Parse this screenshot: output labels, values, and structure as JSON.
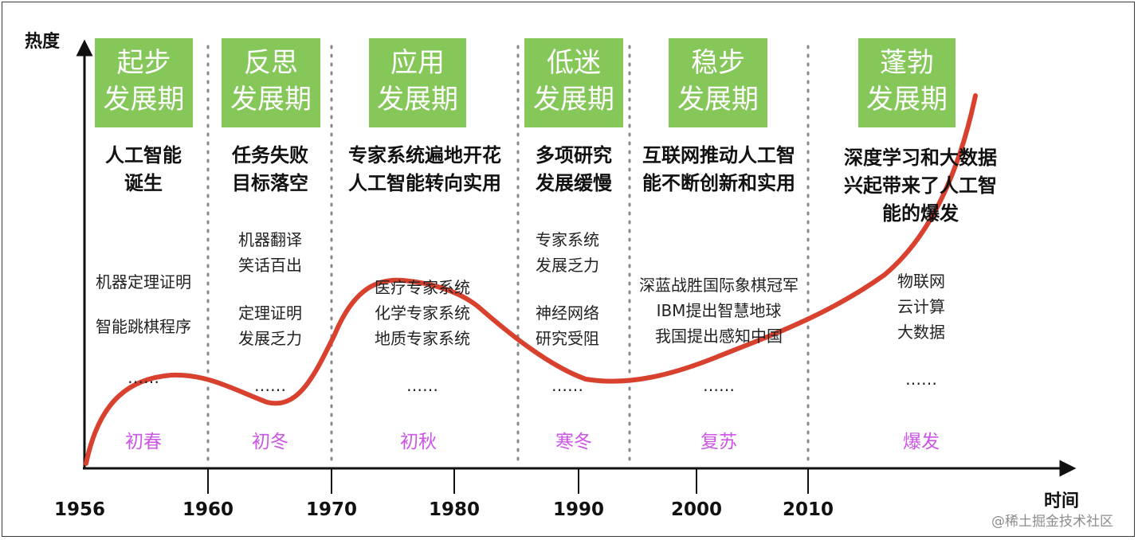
{
  "axes": {
    "y_label": "热度",
    "x_label": "时间",
    "ticks": [
      "1956",
      "1960",
      "1970",
      "1980",
      "1990",
      "2000",
      "2010"
    ]
  },
  "eras": [
    {
      "name_line1": "起步",
      "name_line2": "发展期",
      "title": [
        "人工智能",
        "诞生"
      ],
      "details": [
        "机器定理证明",
        "智能跳棋程序"
      ],
      "ellipsis": "……",
      "season": "初春"
    },
    {
      "name_line1": "反思",
      "name_line2": "发展期",
      "title": [
        "任务失败",
        "目标落空"
      ],
      "details": [
        "机器翻译",
        "笑话百出",
        "定理证明",
        "发展乏力"
      ],
      "ellipsis": "……",
      "season": "初冬"
    },
    {
      "name_line1": "应用",
      "name_line2": "发展期",
      "title": [
        "专家系统遍地开花",
        "人工智能转向实用"
      ],
      "details": [
        "医疗专家系统",
        "化学专家系统",
        "地质专家系统"
      ],
      "ellipsis": "……",
      "season": "初秋"
    },
    {
      "name_line1": "低迷",
      "name_line2": "发展期",
      "title": [
        "多项研究",
        "发展缓慢"
      ],
      "details": [
        "专家系统",
        "发展乏力",
        "神经网络",
        "研究受阻"
      ],
      "ellipsis": "……",
      "season": "寒冬"
    },
    {
      "name_line1": "稳步",
      "name_line2": "发展期",
      "title": [
        "互联网推动人工智",
        "能不断创新和实用"
      ],
      "details": [
        "深蓝战胜国际象棋冠军",
        "IBM提出智慧地球",
        "我国提出感知中国"
      ],
      "ellipsis": "……",
      "season": "复苏"
    },
    {
      "name_line1": "蓬勃",
      "name_line2": "发展期",
      "title": [
        "深度学习和大数据",
        "兴起带来了人工智",
        "能的爆发"
      ],
      "details": [
        "物联网",
        "云计算",
        "大数据"
      ],
      "ellipsis": "……",
      "season": "爆发"
    }
  ],
  "watermark": "@稀土掘金技术社区",
  "colors": {
    "era_box": "#86c75a",
    "curve": "#d9412f",
    "season": "#cc55e6",
    "divider": "#888888"
  }
}
